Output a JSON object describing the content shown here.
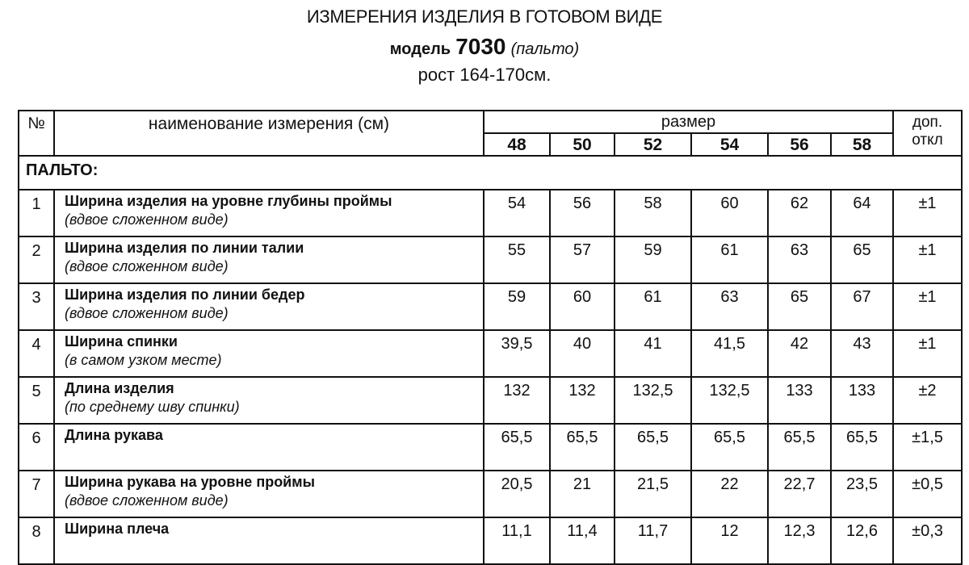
{
  "header": {
    "title": "ИЗМЕРЕНИЯ ИЗДЕЛИЯ В ГОТОВОМ ВИДЕ",
    "model_label": "модель",
    "model_number": "7030",
    "model_type": "(пальто)",
    "height": "рост 164-170см."
  },
  "table": {
    "col_no": "№",
    "col_name": "наименование измерения (см)",
    "col_size": "размер",
    "col_tol_1": "доп.",
    "col_tol_2": "откл",
    "sizes": [
      "48",
      "50",
      "52",
      "54",
      "56",
      "58"
    ],
    "section": "ПАЛЬТО:",
    "rows": [
      {
        "no": "1",
        "name": "Ширина изделия на уровне глубины проймы",
        "note": "(вдвое сложенном виде)",
        "values": [
          "54",
          "56",
          "58",
          "60",
          "62",
          "64"
        ],
        "tol": "±1"
      },
      {
        "no": "2",
        "name": "Ширина изделия по линии талии",
        "note": "(вдвое сложенном виде)",
        "values": [
          "55",
          "57",
          "59",
          "61",
          "63",
          "65"
        ],
        "tol": "±1"
      },
      {
        "no": "3",
        "name": "Ширина изделия по линии бедер",
        "note": "(вдвое сложенном виде)",
        "values": [
          "59",
          "60",
          "61",
          "63",
          "65",
          "67"
        ],
        "tol": "±1"
      },
      {
        "no": "4",
        "name": "Ширина спинки",
        "note": " (в самом узком месте)",
        "values": [
          "39,5",
          "40",
          "41",
          "41,5",
          "42",
          "43"
        ],
        "tol": "±1"
      },
      {
        "no": "5",
        "name": "Длина изделия",
        "note": " (по среднему шву спинки)",
        "values": [
          "132",
          "132",
          "132,5",
          "132,5",
          "133",
          "133"
        ],
        "tol": "±2"
      },
      {
        "no": "6",
        "name": "Длина рукава",
        "note": "",
        "values": [
          "65,5",
          "65,5",
          "65,5",
          "65,5",
          "65,5",
          "65,5"
        ],
        "tol": "±1,5"
      },
      {
        "no": "7",
        "name": "Ширина рукава на уровне проймы",
        "note": "(вдвое сложенном виде)",
        "values": [
          "20,5",
          "21",
          "21,5",
          "22",
          "22,7",
          "23,5"
        ],
        "tol": "±0,5"
      },
      {
        "no": "8",
        "name": "Ширина плеча",
        "note": "",
        "values": [
          "11,1",
          "11,4",
          "11,7",
          "12",
          "12,3",
          "12,6"
        ],
        "tol": "±0,3"
      }
    ]
  }
}
